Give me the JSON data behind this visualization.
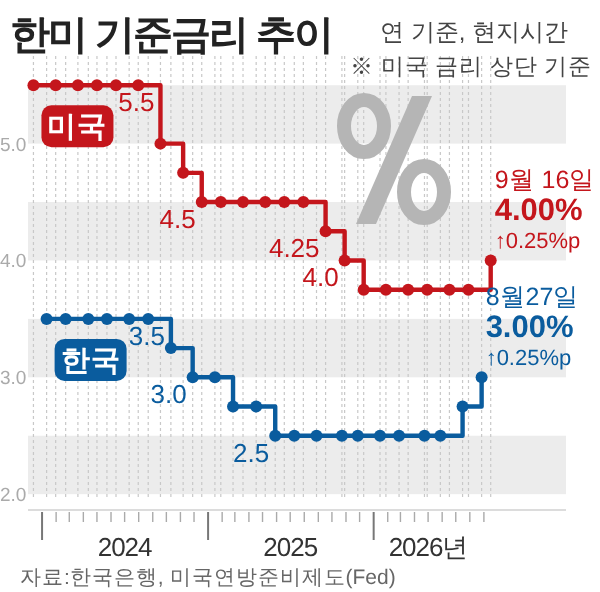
{
  "chart_data": {
    "type": "step",
    "title": "한미 기준금리 추이",
    "subtitle": "연 기준, 현지시간",
    "xlim": [
      "2023-12-01",
      "2027-03-01"
    ],
    "ylim": [
      1.95,
      5.75
    ],
    "yticks": [
      {
        "value": 2,
        "label": "2.0"
      },
      {
        "value": 3,
        "label": "3.0"
      },
      {
        "value": 4,
        "label": "4.0"
      },
      {
        "value": 5,
        "label": "5.0"
      }
    ],
    "xticks": [
      {
        "value": "2024-01",
        "label": null
      },
      {
        "value": "2024-02",
        "label": null
      },
      {
        "value": "2024-03",
        "label": null
      },
      {
        "value": "2024-04",
        "label": null
      },
      {
        "value": "2024-05",
        "label": null
      },
      {
        "value": "2024-06",
        "label": null
      },
      {
        "value": "2024-07",
        "label": "2024"
      },
      {
        "value": "2024-08",
        "label": null
      },
      {
        "value": "2024-09",
        "label": null
      },
      {
        "value": "2024-10",
        "label": null
      },
      {
        "value": "2024-11",
        "label": null
      },
      {
        "value": "2024-12",
        "label": null
      },
      {
        "value": "2025-01",
        "label": null
      },
      {
        "value": "2025-02",
        "label": null
      },
      {
        "value": "2025-03",
        "label": null
      },
      {
        "value": "2025-04",
        "label": null
      },
      {
        "value": "2025-05",
        "label": null
      },
      {
        "value": "2025-06",
        "label": null
      },
      {
        "value": "2025-07",
        "label": "2025"
      },
      {
        "value": "2025-08",
        "label": null
      },
      {
        "value": "2025-09",
        "label": null
      },
      {
        "value": "2025-10",
        "label": null
      },
      {
        "value": "2025-11",
        "label": null
      },
      {
        "value": "2025-12",
        "label": null
      },
      {
        "value": "2026-01",
        "label": null
      },
      {
        "value": "2026-02",
        "label": null
      },
      {
        "value": "2026-03",
        "label": null
      },
      {
        "value": "2026-04",
        "label": null
      },
      {
        "value": "2026-05",
        "label": "2026년"
      },
      {
        "value": "2026-06",
        "label": null
      },
      {
        "value": "2026-07",
        "label": null
      },
      {
        "value": "2026-08",
        "label": null
      },
      {
        "value": "2026-09",
        "label": null
      }
    ],
    "grid": true,
    "marker": "circle",
    "line_style": "solid",
    "bands": [
      {
        "axis": "y",
        "from": 2.0,
        "to": 2.5,
        "color": "#ececec"
      },
      {
        "axis": "y",
        "from": 3.0,
        "to": 3.5,
        "color": "#ececec"
      },
      {
        "axis": "y",
        "from": 4.0,
        "to": 4.5,
        "color": "#ececec"
      },
      {
        "axis": "y",
        "from": 5.0,
        "to": 5.5,
        "color": "#ececec"
      }
    ],
    "series": [
      {
        "name": "미국",
        "color": "#c4161c",
        "x": [
          "2023-12-13",
          "2024-01-31",
          "2024-03-20",
          "2024-05-01",
          "2024-06-12",
          "2024-07-31",
          "2024-09-18",
          "2024-11-07",
          "2024-12-18",
          "2025-01-29",
          "2025-03-19",
          "2025-05-07",
          "2025-06-18",
          "2025-07-30",
          "2025-09-17",
          "2025-10-29",
          "2025-12-10",
          "2026-01-28",
          "2026-03-18",
          "2026-04-29",
          "2026-06-17",
          "2026-07-29",
          "2026-09-16"
        ],
        "values": [
          5.5,
          5.5,
          5.5,
          5.5,
          5.5,
          5.5,
          5.0,
          4.75,
          4.5,
          4.5,
          4.5,
          4.5,
          4.5,
          4.5,
          4.25,
          4.0,
          3.75,
          3.75,
          3.75,
          3.75,
          3.75,
          3.75,
          4.0
        ]
      },
      {
        "name": "한국",
        "color": "#0a5c9e",
        "x": [
          "2024-01-11",
          "2024-02-22",
          "2024-04-12",
          "2024-05-23",
          "2024-07-11",
          "2024-08-22",
          "2024-10-11",
          "2024-11-28",
          "2025-01-16",
          "2025-02-25",
          "2025-04-17",
          "2025-05-29",
          "2025-07-10",
          "2025-08-28",
          "2025-10-23",
          "2025-11-27",
          "2026-01-15",
          "2026-02-26",
          "2026-04-23",
          "2026-05-28",
          "2026-07-16",
          "2026-08-27"
        ],
        "values": [
          3.5,
          3.5,
          3.5,
          3.5,
          3.5,
          3.5,
          3.25,
          3.0,
          3.0,
          2.75,
          2.75,
          2.5,
          2.5,
          2.5,
          2.5,
          2.5,
          2.5,
          2.5,
          2.5,
          2.5,
          2.75,
          3.0
        ]
      }
    ],
    "annotations": [
      "※ 미국 금리 상단 기준",
      "자료:한국은행, 미국연방준비제도(Fed)",
      {
        "text": "5.5",
        "x": "2024-09-18",
        "y": 5.5
      },
      {
        "text": "4.5",
        "x": "2024-12-18",
        "y": 4.5
      },
      {
        "text": "4.25",
        "x": "2025-09-17",
        "y": 4.25
      },
      {
        "text": "4.0",
        "x": "2025-10-29",
        "y": 4.0
      },
      {
        "text": "3.5",
        "x": "2024-10-11",
        "y": 3.5
      },
      {
        "text": "3.0",
        "x": "2024-11-28",
        "y": 3.0
      },
      {
        "text": "2.5",
        "x": "2025-05-29",
        "y": 2.5
      },
      {
        "text": "9월 16일\n4.00%\n↑0.25%p",
        "x": "2026-09-16",
        "y": 4.0
      },
      {
        "text": "8월27일\n3.00%\n↑0.25%p",
        "x": "2026-08-27",
        "y": 3.0
      }
    ]
  }
}
